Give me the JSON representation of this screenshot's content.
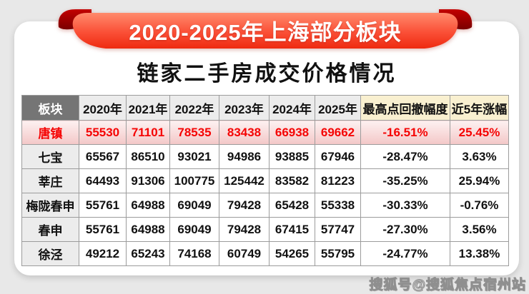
{
  "header": {
    "banner_title": "2020-2025年上海部分板块",
    "subtitle": "链家二手房成交价格情况"
  },
  "chart_data": {
    "type": "table",
    "title": "链家二手房成交价格情况",
    "banner": "2020-2025年上海部分板块",
    "columns": [
      "板块",
      "2020年",
      "2021年",
      "2022年",
      "2023年",
      "2024年",
      "2025年",
      "最高点回撤幅度",
      "近5年涨幅"
    ],
    "rows": [
      {
        "name": "唐镇",
        "highlight": true,
        "values": [
          "55530",
          "71101",
          "78535",
          "83438",
          "66938",
          "69662",
          "-16.51%",
          "25.45%"
        ]
      },
      {
        "name": "七宝",
        "highlight": false,
        "values": [
          "65567",
          "86510",
          "93021",
          "94986",
          "93885",
          "67946",
          "-28.47%",
          "3.63%"
        ]
      },
      {
        "name": "莘庄",
        "highlight": false,
        "values": [
          "64493",
          "91306",
          "100775",
          "125442",
          "83582",
          "81223",
          "-35.25%",
          "25.94%"
        ]
      },
      {
        "name": "梅陇春申",
        "highlight": false,
        "values": [
          "55761",
          "64988",
          "69049",
          "79428",
          "65428",
          "55338",
          "-30.33%",
          "-0.76%"
        ]
      },
      {
        "name": "春申",
        "highlight": false,
        "values": [
          "55761",
          "64988",
          "69049",
          "79428",
          "67415",
          "57747",
          "-27.30%",
          "3.56%"
        ]
      },
      {
        "name": "徐泾",
        "highlight": false,
        "values": [
          "49212",
          "65243",
          "74168",
          "60749",
          "54265",
          "55795",
          "-24.77%",
          "13.38%"
        ]
      }
    ],
    "layout": {
      "highlight_row": "唐镇",
      "header_first_cell_bg": "#757575",
      "year_header_bg": "#ececec",
      "pct_header_bg": "#f9f0d0",
      "highlight_row_color": "#f50404"
    }
  },
  "watermark": {
    "text": "搜狐号@搜狐焦点宿州站"
  },
  "colors": {
    "page_background": "#e8e8e8",
    "card_background": "#ffffff",
    "ribbon_top": "#ff8a6c",
    "ribbon_bottom": "#ee2a10",
    "ribbon_curl": "#8c0000",
    "table_border": "#9c9c9c",
    "highlight_text": "#f50404"
  }
}
